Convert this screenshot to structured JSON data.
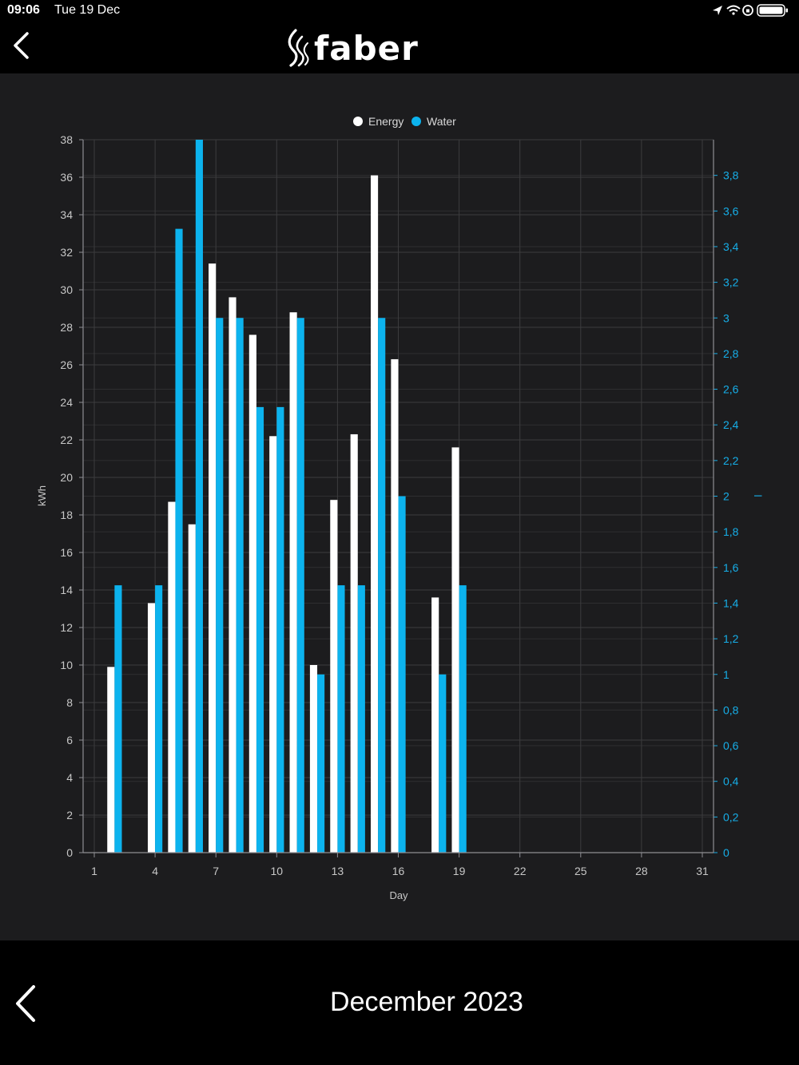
{
  "status_bar": {
    "time": "09:06",
    "date": "Tue 19 Dec"
  },
  "header": {
    "logo_text": "faber"
  },
  "footer": {
    "month_label": "December 2023"
  },
  "colors": {
    "energy": "#ffffff",
    "water": "#0cb3ee",
    "background": "#1c1c1e",
    "grid": "#3c3c3e"
  },
  "chart_data": {
    "type": "bar",
    "xlabel": "Day",
    "ylabel_left": "kWh",
    "ylabel_right": "l",
    "xlim": [
      1,
      31
    ],
    "x_ticks": [
      1,
      4,
      7,
      10,
      13,
      16,
      19,
      22,
      25,
      28,
      31
    ],
    "y_left_lim": [
      0,
      38
    ],
    "y_left_ticks": [
      0,
      2,
      4,
      6,
      8,
      10,
      12,
      14,
      16,
      18,
      20,
      22,
      24,
      26,
      28,
      30,
      32,
      34,
      36,
      38
    ],
    "y_right_lim": [
      0,
      4
    ],
    "y_right_ticks": [
      "0",
      "0,2",
      "0,4",
      "0,6",
      "0,8",
      "1",
      "1,2",
      "1,4",
      "1,6",
      "1,8",
      "2",
      "2,2",
      "2,4",
      "2,6",
      "2,8",
      "3",
      "3,2",
      "3,4",
      "3,6",
      "3,8"
    ],
    "legend_position": "top-center",
    "grid": true,
    "series": [
      {
        "name": "Energy",
        "axis": "left",
        "x": [
          2,
          4,
          5,
          6,
          7,
          8,
          9,
          10,
          11,
          12,
          13,
          14,
          15,
          16,
          18,
          19
        ],
        "values": [
          9.9,
          13.3,
          18.7,
          17.5,
          31.4,
          29.6,
          27.6,
          22.2,
          28.8,
          10.0,
          18.8,
          22.3,
          36.1,
          26.3,
          13.6,
          21.6
        ]
      },
      {
        "name": "Water",
        "axis": "right",
        "x": [
          2,
          4,
          5,
          6,
          7,
          8,
          9,
          10,
          11,
          12,
          13,
          14,
          15,
          16,
          18,
          19
        ],
        "values": [
          1.5,
          1.5,
          3.5,
          4.0,
          3.0,
          3.0,
          2.5,
          2.5,
          3.0,
          1.0,
          1.5,
          1.5,
          3.0,
          2.0,
          1.0,
          1.5
        ]
      }
    ]
  }
}
